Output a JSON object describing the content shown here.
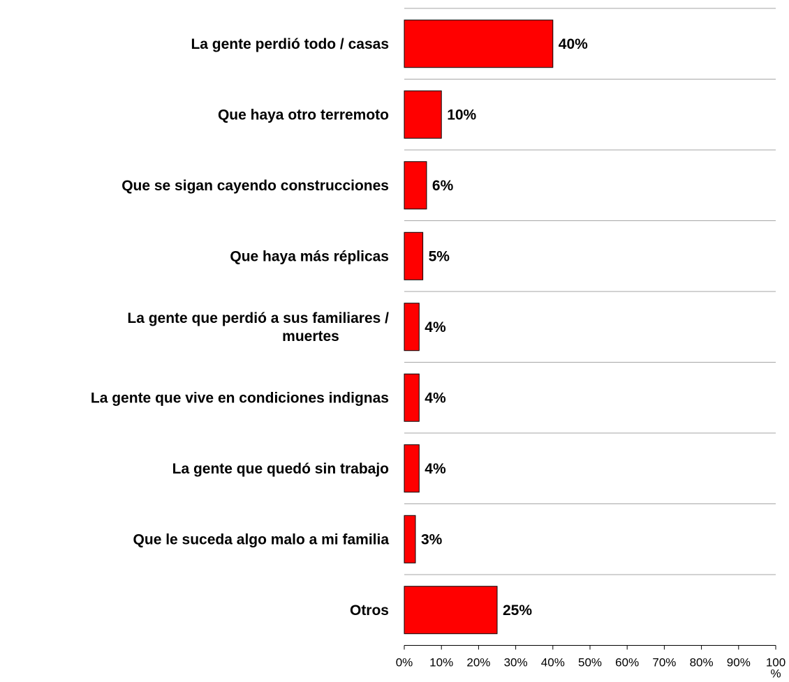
{
  "chart_data": {
    "type": "bar",
    "orientation": "horizontal",
    "categories": [
      [
        "La gente perdió todo / casas"
      ],
      [
        "Que haya otro terremoto"
      ],
      [
        "Que se sigan cayendo construcciones"
      ],
      [
        "Que haya más réplicas"
      ],
      [
        "La gente que perdió a sus familiares /",
        "muertes"
      ],
      [
        "La gente que vive en condiciones indignas"
      ],
      [
        "La gente que quedó sin trabajo"
      ],
      [
        "Que le suceda algo malo a mi familia"
      ],
      [
        "Otros"
      ]
    ],
    "values": [
      40,
      10,
      6,
      5,
      4,
      4,
      4,
      3,
      25
    ],
    "data_labels": [
      "40%",
      "10%",
      "6%",
      "5%",
      "4%",
      "4%",
      "4%",
      "3%",
      "25%"
    ],
    "xlim": [
      0,
      100
    ],
    "x_ticks": [
      "0%",
      "10%",
      "20%",
      "30%",
      "40%",
      "50%",
      "60%",
      "70%",
      "80%",
      "90%",
      "100 %"
    ],
    "bar_color": "#ff0000",
    "gridlines": "horizontal separators between categories",
    "legend": "none"
  }
}
